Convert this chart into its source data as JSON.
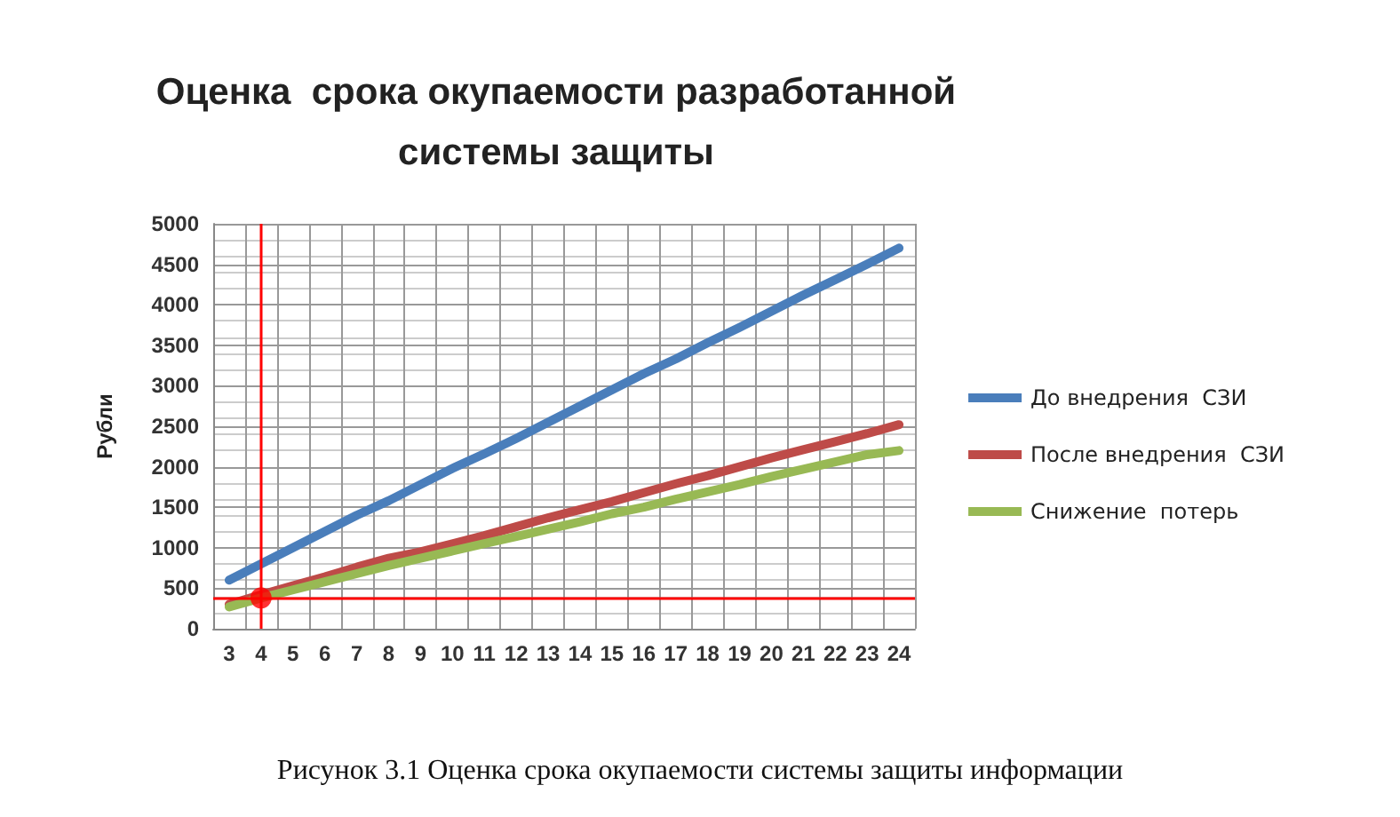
{
  "chart_data": {
    "type": "line",
    "title": "Оценка  срока окупаемости разработанной\nсистемы защиты",
    "ylabel": "Рубли",
    "categories": [
      "3",
      "4",
      "5",
      "6",
      "7",
      "8",
      "9",
      "10",
      "11",
      "12",
      "13",
      "14",
      "15",
      "16",
      "17",
      "18",
      "19",
      "20",
      "21",
      "22",
      "23",
      "24"
    ],
    "series": [
      {
        "name": "До внедрения  СЗИ",
        "color": "#4a7ebb",
        "values": [
          600,
          800,
          1000,
          1200,
          1400,
          1580,
          1780,
          1980,
          2160,
          2350,
          2550,
          2750,
          2950,
          3150,
          3330,
          3530,
          3720,
          3920,
          4120,
          4310,
          4500,
          4700
        ]
      },
      {
        "name": "После внедрения  СЗИ",
        "color": "#be4b48",
        "values": [
          300,
          420,
          530,
          640,
          760,
          870,
          950,
          1050,
          1150,
          1260,
          1370,
          1470,
          1570,
          1680,
          1790,
          1890,
          2000,
          2110,
          2210,
          2310,
          2410,
          2520
        ]
      },
      {
        "name": "Снижение  потерь",
        "color": "#98b954",
        "values": [
          270,
          380,
          480,
          580,
          680,
          780,
          870,
          960,
          1050,
          1140,
          1230,
          1320,
          1420,
          1500,
          1600,
          1690,
          1780,
          1880,
          1970,
          2060,
          2150,
          2200
        ]
      },
      {
        "type": "scatter",
        "marker": "circle",
        "color": "#ff0000",
        "x": [
          "4"
        ],
        "values": [
          380
        ]
      }
    ],
    "ylim": [
      0,
      5000
    ],
    "yticks": [
      0,
      500,
      1000,
      1500,
      2000,
      2500,
      3000,
      3500,
      4000,
      4500,
      5000
    ],
    "grid": true,
    "legend": "right",
    "marker": "none",
    "ref_lines": [
      {
        "axis": "x",
        "value": "4",
        "color": "#ff0000"
      },
      {
        "axis": "y",
        "value": 380,
        "color": "#ff0000"
      }
    ],
    "annotations": [
      "Рисунок 3.1 Оценка срока окупаемости системы защиты информации"
    ]
  }
}
